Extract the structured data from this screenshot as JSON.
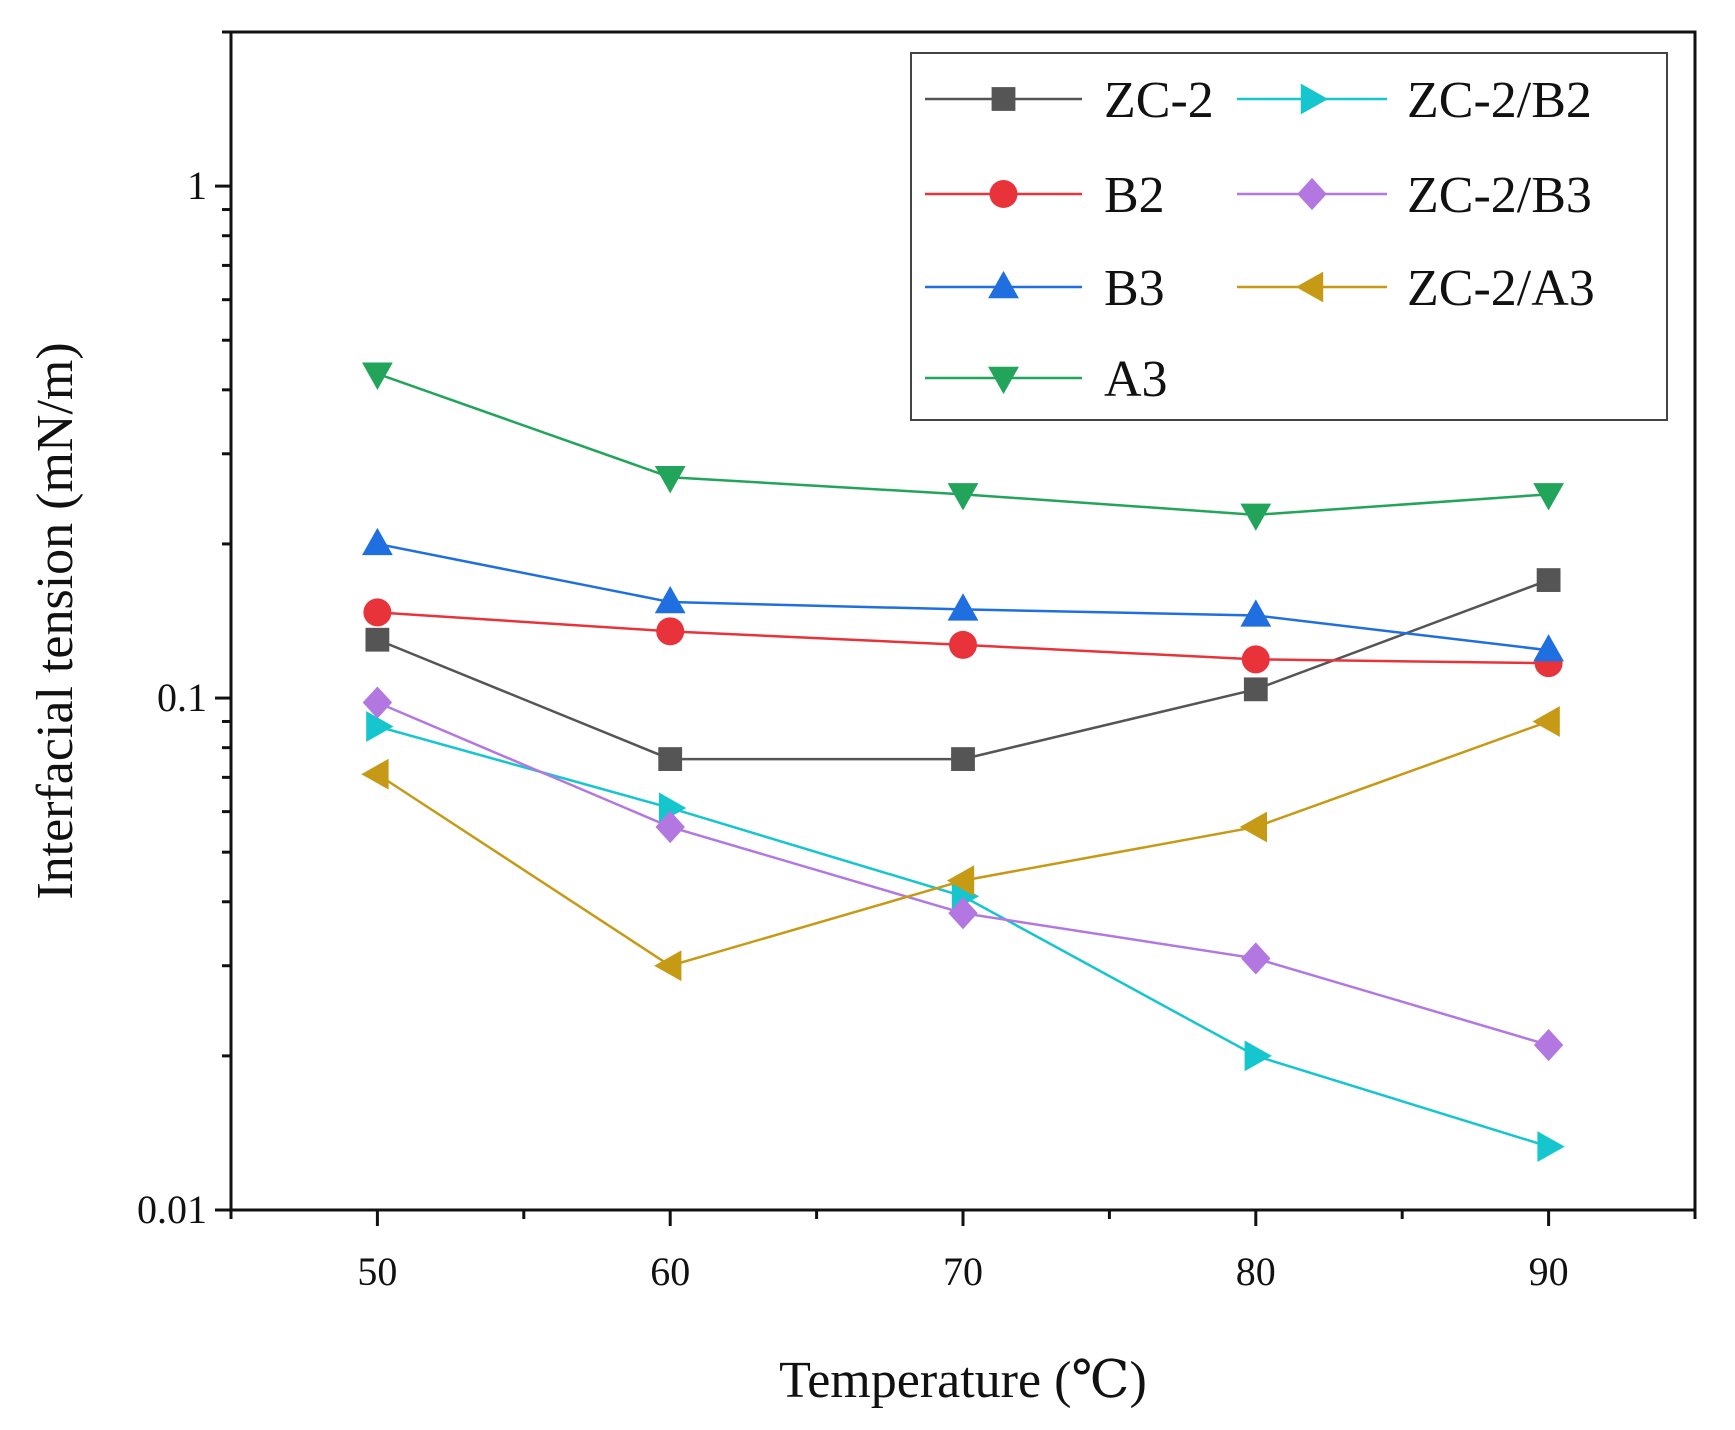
{
  "chart_data": {
    "type": "line",
    "xlabel": "Temperature (℃)",
    "ylabel": "Interfacial tension (mN/m)",
    "yscale": "log",
    "xlim": [
      45,
      95
    ],
    "ylim": [
      0.01,
      2
    ],
    "x": [
      50,
      60,
      70,
      80,
      90
    ],
    "xticks": [
      50,
      60,
      70,
      80,
      90
    ],
    "xtick_labels": [
      "50",
      "60",
      "70",
      "80",
      "90"
    ],
    "yticks": [
      0.01,
      0.1,
      1
    ],
    "ytick_labels": [
      "0.01",
      "0.1",
      "1"
    ],
    "legend_position": "top-right",
    "series": [
      {
        "name": "ZC-2",
        "color": "#555555",
        "marker": "square",
        "values": [
          0.13,
          0.076,
          0.076,
          0.104,
          0.17
        ]
      },
      {
        "name": "B2",
        "color": "#e8333b",
        "marker": "circle",
        "values": [
          0.147,
          0.135,
          0.127,
          0.119,
          0.117
        ]
      },
      {
        "name": "B3",
        "color": "#1f6fe0",
        "marker": "triangle-up",
        "values": [
          0.2,
          0.154,
          0.149,
          0.145,
          0.124
        ]
      },
      {
        "name": "A3",
        "color": "#22a55a",
        "marker": "triangle-down",
        "values": [
          0.43,
          0.27,
          0.25,
          0.228,
          0.25
        ]
      },
      {
        "name": "ZC-2/B2",
        "color": "#16c6cf",
        "marker": "triangle-right",
        "values": [
          0.088,
          0.061,
          0.041,
          0.02,
          0.0133
        ]
      },
      {
        "name": "ZC-2/B3",
        "color": "#b277e0",
        "marker": "diamond",
        "values": [
          0.098,
          0.056,
          0.038,
          0.031,
          0.021
        ]
      },
      {
        "name": "ZC-2/A3",
        "color": "#c79a16",
        "marker": "triangle-left",
        "values": [
          0.071,
          0.03,
          0.044,
          0.056,
          0.09
        ]
      }
    ]
  }
}
